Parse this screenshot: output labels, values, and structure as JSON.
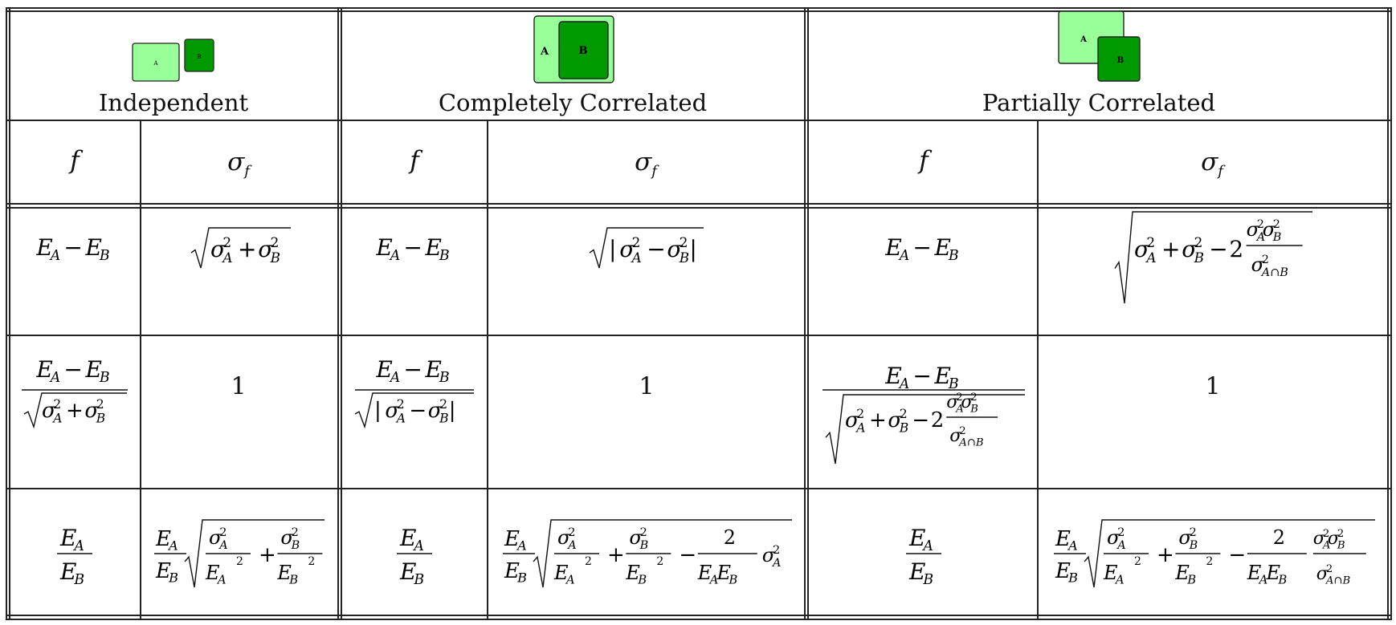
{
  "columns": [
    {
      "key": "independent",
      "title": "Independent",
      "icon": {
        "labels": [
          "A",
          "B"
        ],
        "colors": {
          "A": "#99ff99",
          "B": "#009900"
        }
      }
    },
    {
      "key": "completely",
      "title": "Completely Correlated",
      "icon": {
        "labels": [
          "A",
          "B"
        ],
        "colors": {
          "A": "#99ff99",
          "B": "#009900"
        }
      }
    },
    {
      "key": "partially",
      "title": "Partially Correlated",
      "icon": {
        "labels": [
          "A",
          "B"
        ],
        "colors": {
          "A": "#99ff99",
          "B": "#009900"
        }
      }
    }
  ],
  "subheaders": {
    "f": "f",
    "sigma_f": "σ_f"
  },
  "rows": [
    {
      "independent": {
        "f": "E_A − E_B",
        "sigma": "√(σ_A² + σ_B²)"
      },
      "completely": {
        "f": "E_A − E_B",
        "sigma": "√|σ_A² − σ_B²|"
      },
      "partially": {
        "f": "E_A − E_B",
        "sigma": "√(σ_A² + σ_B² − 2 σ_A²σ_B²/σ_{A∩B}²)"
      }
    },
    {
      "independent": {
        "f": "(E_A − E_B)/√(σ_A² + σ_B²)",
        "sigma": "1"
      },
      "completely": {
        "f": "(E_A − E_B)/√|σ_A² − σ_B²|",
        "sigma": "1"
      },
      "partially": {
        "f": "(E_A − E_B)/√(σ_A² + σ_B² − 2 σ_A²σ_B²/σ_{A∩B}²)",
        "sigma": "1"
      }
    },
    {
      "independent": {
        "f": "E_A/E_B",
        "sigma": "(E_A/E_B)√(σ_A²/E_A² + σ_B²/E_B²)"
      },
      "completely": {
        "f": "E_A/E_B",
        "sigma": "(E_A/E_B)√(σ_A²/E_A² + σ_B²/E_B² − 2/(E_A E_B) σ_A²)"
      },
      "partially": {
        "f": "E_A/E_B",
        "sigma": "(E_A/E_B)√(σ_A²/E_A² + σ_B²/E_B² − 2/(E_A E_B) σ_A²σ_B²/σ_{A∩B}²)"
      }
    }
  ],
  "tokens": {
    "E": "E",
    "A": "A",
    "B": "B",
    "sigma": "σ",
    "two": "2",
    "one": "1",
    "minus": "−",
    "plus": "+",
    "cap": "A∩B",
    "f": "f"
  }
}
